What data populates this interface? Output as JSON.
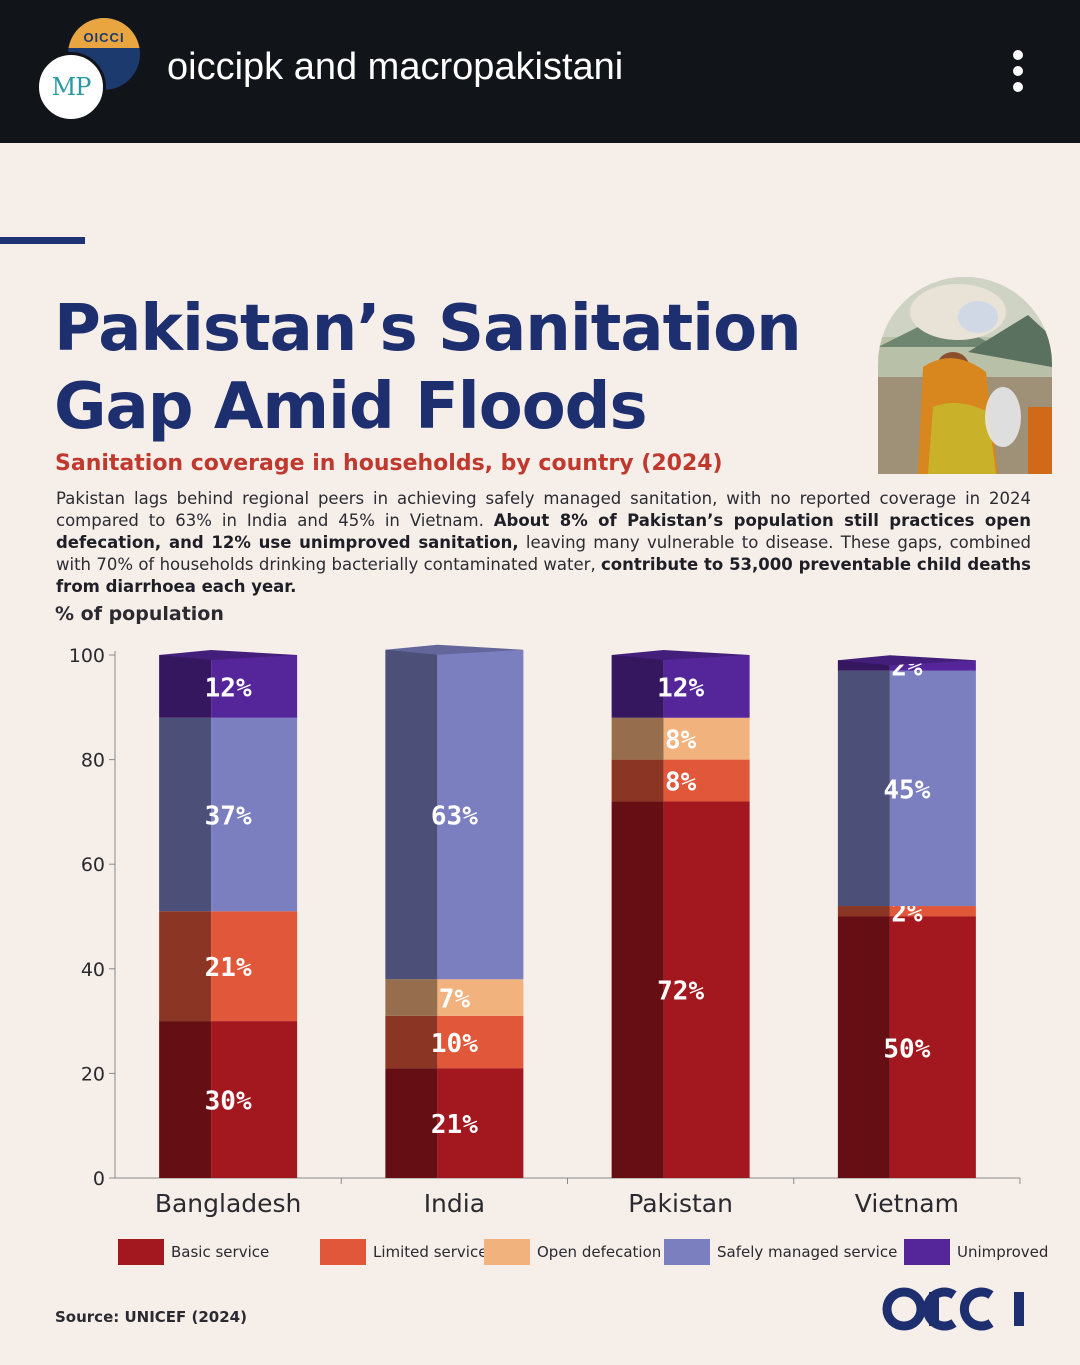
{
  "header": {
    "username": "oiccipk and macropakistani",
    "avatar_back_text": "OICCI",
    "avatar_front_text": "MP",
    "menu_icon": "more-vertical-icon"
  },
  "infographic": {
    "title_line1": "Pakistan’s Sanitation",
    "title_line2": "Gap Amid Floods",
    "subtitle": "Sanitation coverage in households, by country (2024)",
    "description": {
      "p1": "Pakistan lags behind regional peers in achieving safely managed sanitation, with no reported coverage in 2024 compared to 63% in India and 45% in Vietnam. ",
      "b1": "About 8% of Pakistan’s population still practices open defecation, and 12% use unimproved sanitation,",
      "p2": " leaving many vulnerable to disease. These gaps, combined with 70% of households drinking bacterially contaminated water, ",
      "b2": "contribute to 53,000 preventable child deaths from diarrhoea each year."
    },
    "source": "Source: UNICEF (2024)",
    "brand": "OICCI"
  },
  "chart_data": {
    "type": "bar",
    "stacked": true,
    "ylabel": "% of population",
    "ylim": [
      0,
      100
    ],
    "yticks": [
      0,
      20,
      40,
      60,
      80,
      100
    ],
    "categories": [
      "Bangladesh",
      "India",
      "Pakistan",
      "Vietnam"
    ],
    "series": [
      {
        "name": "Basic service",
        "color": "#a3171e",
        "values": [
          30,
          21,
          72,
          50
        ]
      },
      {
        "name": "Limited service",
        "color": "#e0573a",
        "values": [
          21,
          10,
          8,
          2
        ]
      },
      {
        "name": "Open defecation",
        "color": "#f2b27d",
        "values": [
          0,
          7,
          8,
          0
        ]
      },
      {
        "name": "Safely managed service",
        "color": "#7b7fc0",
        "values": [
          37,
          63,
          0,
          45
        ]
      },
      {
        "name": "Unimproved",
        "color": "#55259a",
        "values": [
          12,
          0,
          12,
          2
        ]
      }
    ],
    "legend_position": "bottom",
    "grid": false
  }
}
